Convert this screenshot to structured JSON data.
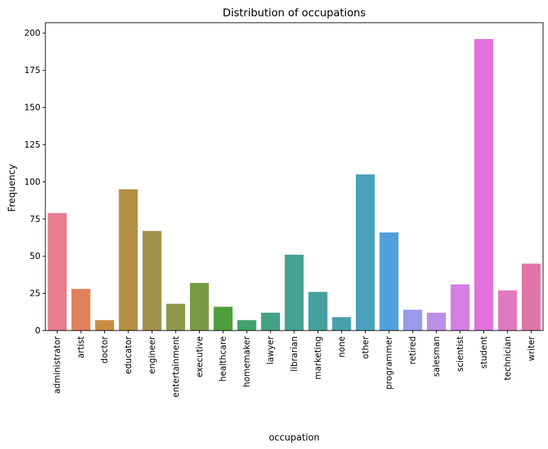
{
  "chart_data": {
    "type": "bar",
    "title": "Distribution of occupations",
    "xlabel": "occupation",
    "ylabel": "Frequency",
    "ylim": [
      0,
      207
    ],
    "yticks": [
      0,
      25,
      50,
      75,
      100,
      125,
      150,
      175,
      200
    ],
    "grid": false,
    "legend": "none",
    "categories": [
      "administrator",
      "artist",
      "doctor",
      "educator",
      "engineer",
      "entertainment",
      "executive",
      "healthcare",
      "homemaker",
      "lawyer",
      "librarian",
      "marketing",
      "none",
      "other",
      "programmer",
      "retired",
      "salesman",
      "scientist",
      "student",
      "technician",
      "writer"
    ],
    "values": [
      79,
      28,
      7,
      95,
      67,
      18,
      32,
      16,
      7,
      12,
      51,
      26,
      9,
      105,
      66,
      14,
      12,
      31,
      196,
      27,
      45
    ],
    "colors": [
      "#e77c8d",
      "#e0805c",
      "#c98d41",
      "#b48f43",
      "#a1934a",
      "#8f974a",
      "#779b44",
      "#4f9f3d",
      "#41a26a",
      "#43a283",
      "#45a293",
      "#46a09f",
      "#47a0ab",
      "#4aa0bd",
      "#50a0de",
      "#9a9ae8",
      "#bb8fe8",
      "#d47ee6",
      "#e170dc",
      "#e078be",
      "#df75a9"
    ]
  }
}
